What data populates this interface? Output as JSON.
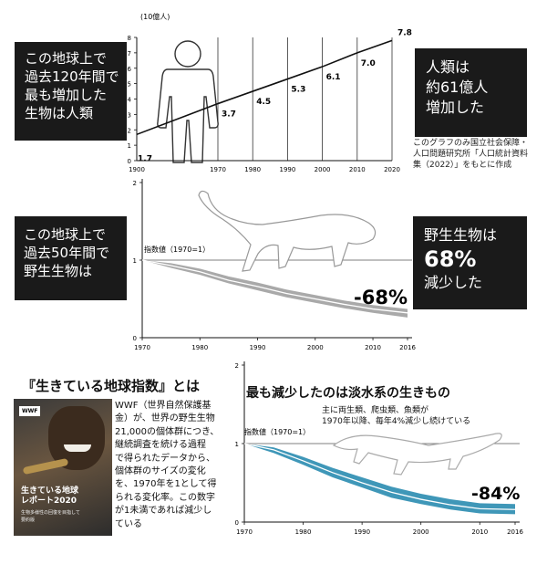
{
  "charts": {
    "human": {
      "box_lines": [
        "この地球上で",
        "過去120年間で",
        "最も増加した",
        "生物は人類"
      ],
      "unit": "(10億人)",
      "result_lines": [
        "人類は",
        "約61億人",
        "増加した"
      ],
      "source": [
        "このグラフのみ国立社会保障・",
        "人口問題研究所「人口統計資料",
        "集（2022）」をもとに作成"
      ]
    },
    "wild": {
      "box_lines": [
        "この地球上で",
        "過去50年間で",
        "野生生物は"
      ],
      "index_label": "指数値（1970=1）",
      "change": "-68%",
      "result_lines": [
        "野生生物は",
        "68%",
        "減少した"
      ]
    },
    "fresh": {
      "title": "最も減少したのは淡水系の生きもの",
      "subtitle": [
        "主に両生類、爬虫類、魚類が",
        "1970年以降、毎年4%減少し続けている"
      ],
      "index_label": "指数値（1970=1）",
      "change": "-84%"
    }
  },
  "lpi": {
    "heading": "『生きている地球指数』とは",
    "body": [
      "WWF（世界自然保護基",
      "金）が、世界の野生生物",
      "21,000の個体群につき、",
      "継続調査を続ける過程",
      "で得られたデータから、",
      "個体群のサイズの変化",
      "を、1970年を1として得",
      "られる変化率。この数字",
      "が1未満であれば減少し",
      "ている"
    ],
    "cover": {
      "logo": "WWF",
      "title": [
        "生きている地球",
        "レポート2020"
      ],
      "sub": [
        "生物多様性の回復を目指して",
        "要約版"
      ]
    }
  },
  "chart_data": [
    {
      "type": "line",
      "x": [
        1900,
        1970,
        1980,
        1990,
        2000,
        2010,
        2020
      ],
      "series": [
        {
          "values": [
            1.7,
            3.7,
            4.5,
            5.3,
            6.1,
            7.0,
            7.8
          ]
        }
      ],
      "data_labels": [
        "1.7",
        "3.7",
        "4.5",
        "5.3",
        "6.1",
        "7.0",
        "7.8"
      ],
      "ylabel": "(10億人)",
      "ylim": [
        0,
        8
      ],
      "yticks": [
        "0",
        "1",
        "2",
        "3",
        "4",
        "5",
        "6",
        "7",
        "8"
      ],
      "xticks": [
        "1900",
        "1970",
        "1980",
        "1990",
        "2000",
        "2010",
        "2020"
      ],
      "colors": {
        "line": "#111111",
        "grid": "#333333"
      }
    },
    {
      "type": "line",
      "x": [
        1970,
        1975,
        1980,
        1985,
        1990,
        1995,
        2000,
        2005,
        2010,
        2016
      ],
      "series": [
        {
          "values": [
            1.0,
            0.93,
            0.85,
            0.74,
            0.66,
            0.57,
            0.5,
            0.43,
            0.37,
            0.32
          ]
        }
      ],
      "band": {
        "upper": [
          1.0,
          0.96,
          0.89,
          0.79,
          0.71,
          0.62,
          0.55,
          0.48,
          0.42,
          0.37
        ],
        "lower": [
          1.0,
          0.9,
          0.81,
          0.7,
          0.61,
          0.52,
          0.45,
          0.38,
          0.32,
          0.26
        ]
      },
      "ylim": [
        0,
        2
      ],
      "yticks": [
        "0",
        "1",
        "2"
      ],
      "xticks": [
        "1970",
        "1980",
        "1990",
        "2000",
        "2010",
        "2016"
      ],
      "colors": {
        "band": "#a9a9a9",
        "line": "#ffffff"
      }
    },
    {
      "type": "line",
      "x": [
        1970,
        1975,
        1980,
        1985,
        1990,
        1995,
        2000,
        2005,
        2010,
        2016
      ],
      "series": [
        {
          "values": [
            1.0,
            0.92,
            0.78,
            0.63,
            0.5,
            0.38,
            0.29,
            0.22,
            0.17,
            0.16
          ]
        }
      ],
      "band": {
        "upper": [
          1.0,
          0.95,
          0.83,
          0.69,
          0.57,
          0.45,
          0.36,
          0.29,
          0.24,
          0.23
        ],
        "lower": [
          1.0,
          0.88,
          0.73,
          0.57,
          0.44,
          0.31,
          0.23,
          0.16,
          0.11,
          0.1
        ]
      },
      "ylim": [
        0,
        2
      ],
      "yticks": [
        "0",
        "1",
        "2"
      ],
      "xticks": [
        "1970",
        "1980",
        "1990",
        "2000",
        "2010",
        "2016"
      ],
      "colors": {
        "band": "#3f97b8",
        "line": "#ffffff"
      }
    }
  ]
}
